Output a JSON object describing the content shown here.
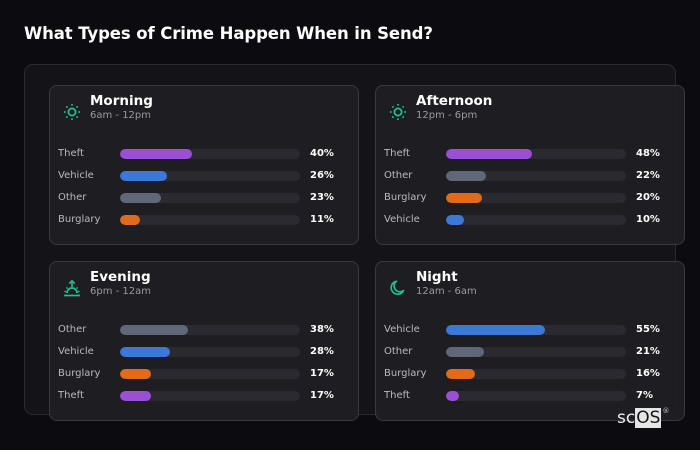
{
  "header": {
    "title": "What Types of Crime Happen When in Send?"
  },
  "colors": {
    "Theft": "#9b4fd6",
    "Vehicle": "#3b78d8",
    "Other": "#5f6778",
    "Burglary": "#e06a1e",
    "accent": "#1fbf8f"
  },
  "cards": [
    {
      "name": "Morning",
      "range": "6am - 12pm",
      "icon": "sun-icon",
      "rows": [
        {
          "label": "Theft",
          "value": 40,
          "pct": "40%"
        },
        {
          "label": "Vehicle",
          "value": 26,
          "pct": "26%"
        },
        {
          "label": "Other",
          "value": 23,
          "pct": "23%"
        },
        {
          "label": "Burglary",
          "value": 11,
          "pct": "11%"
        }
      ]
    },
    {
      "name": "Afternoon",
      "range": "12pm - 6pm",
      "icon": "sun-icon",
      "rows": [
        {
          "label": "Theft",
          "value": 48,
          "pct": "48%"
        },
        {
          "label": "Other",
          "value": 22,
          "pct": "22%"
        },
        {
          "label": "Burglary",
          "value": 20,
          "pct": "20%"
        },
        {
          "label": "Vehicle",
          "value": 10,
          "pct": "10%"
        }
      ]
    },
    {
      "name": "Evening",
      "range": "6pm - 12am",
      "icon": "sunset-icon",
      "rows": [
        {
          "label": "Other",
          "value": 38,
          "pct": "38%"
        },
        {
          "label": "Vehicle",
          "value": 28,
          "pct": "28%"
        },
        {
          "label": "Burglary",
          "value": 17,
          "pct": "17%"
        },
        {
          "label": "Theft",
          "value": 17,
          "pct": "17%"
        }
      ]
    },
    {
      "name": "Night",
      "range": "12am - 6am",
      "icon": "moon-icon",
      "rows": [
        {
          "label": "Vehicle",
          "value": 55,
          "pct": "55%"
        },
        {
          "label": "Other",
          "value": 21,
          "pct": "21%"
        },
        {
          "label": "Burglary",
          "value": 16,
          "pct": "16%"
        },
        {
          "label": "Theft",
          "value": 7,
          "pct": "7%"
        }
      ]
    }
  ],
  "logo": {
    "part1": "sc",
    "part2": "OS",
    "mark": "®"
  },
  "chart_data": {
    "type": "bar",
    "title": "What Types of Crime Happen When in Send?",
    "orientation": "horizontal",
    "xlim": [
      0,
      100
    ],
    "unit": "%",
    "panels": [
      {
        "title": "Morning",
        "subtitle": "6am - 12pm",
        "categories": [
          "Theft",
          "Vehicle",
          "Other",
          "Burglary"
        ],
        "values": [
          40,
          26,
          23,
          11
        ]
      },
      {
        "title": "Afternoon",
        "subtitle": "12pm - 6pm",
        "categories": [
          "Theft",
          "Other",
          "Burglary",
          "Vehicle"
        ],
        "values": [
          48,
          22,
          20,
          10
        ]
      },
      {
        "title": "Evening",
        "subtitle": "6pm - 12am",
        "categories": [
          "Other",
          "Vehicle",
          "Burglary",
          "Theft"
        ],
        "values": [
          38,
          28,
          17,
          17
        ]
      },
      {
        "title": "Night",
        "subtitle": "12am - 6am",
        "categories": [
          "Vehicle",
          "Other",
          "Burglary",
          "Theft"
        ],
        "values": [
          55,
          21,
          16,
          7
        ]
      }
    ],
    "series_colors": {
      "Theft": "#9b4fd6",
      "Vehicle": "#3b78d8",
      "Other": "#5f6778",
      "Burglary": "#e06a1e"
    }
  }
}
